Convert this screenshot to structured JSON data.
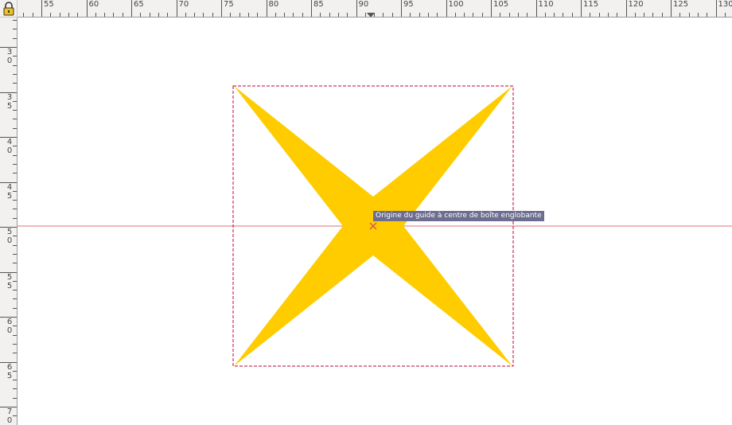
{
  "toolbar": {
    "lock_icon": "padlock-icon"
  },
  "ruler": {
    "horizontal_labels": [
      "55",
      "60",
      "65",
      "70",
      "75",
      "80",
      "85",
      "90",
      "95",
      "100",
      "105",
      "110",
      "115",
      "120",
      "125",
      "130"
    ],
    "vertical_labels": [
      "3\n0",
      "3\n5",
      "4\n0",
      "4\n5",
      "5\n0",
      "5\n5",
      "6\n0",
      "6\n5",
      "7\n0"
    ],
    "position_marker": "triangle-marker-icon"
  },
  "canvas": {
    "shape": {
      "type": "four-point-star",
      "fill": "#ffcc00"
    },
    "bounding_box_color": "#c0002f",
    "guide_color": "#e0707a"
  },
  "tooltip": {
    "text": "Origine du guide à centre de boîte englobante"
  },
  "colors": {
    "ruler_bg": "#f2f1f0",
    "star": "#ffcc00",
    "guide": "#e0707a",
    "bbox": "#c0002f",
    "tooltip_bg": "#6d6d8f"
  }
}
